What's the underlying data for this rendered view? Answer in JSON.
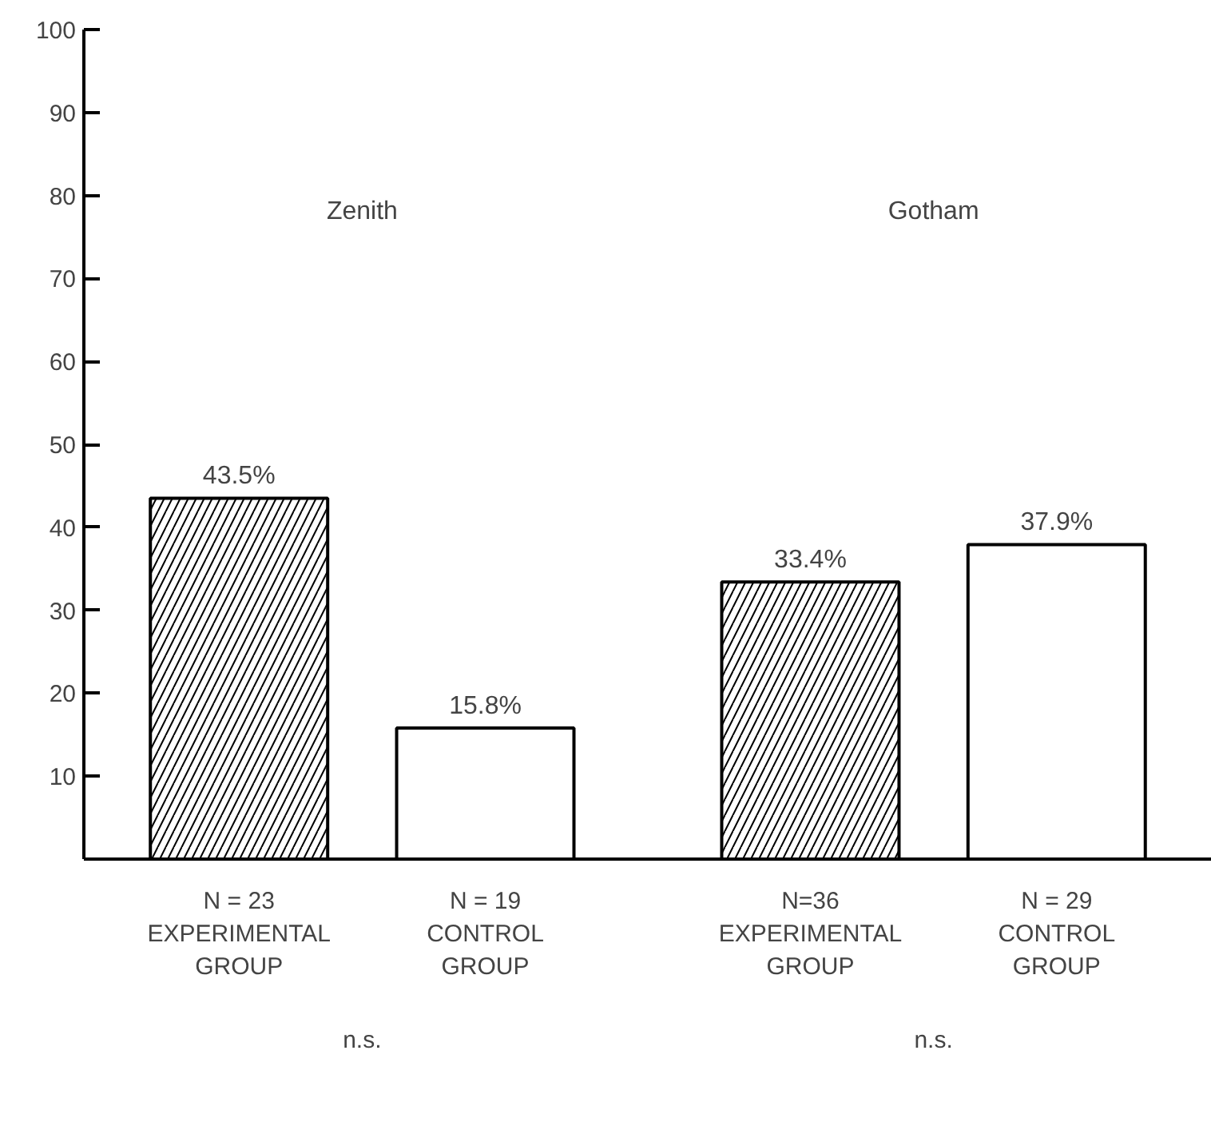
{
  "chart_data": {
    "type": "bar",
    "categories": [
      "N = 23\nEXPERIMENTAL\nGROUP",
      "N = 19\nCONTROL\nGROUP",
      "N=36\nEXPERIMENTAL\nGROUP",
      "N = 29\nCONTROL\nGROUP"
    ],
    "series": [
      {
        "color": "#ffffff",
        "values": [
          43.5,
          null,
          33.4,
          null
        ],
        "value_labels": [
          "43.5%",
          null,
          "33.4%",
          null
        ]
      },
      {
        "color": "#ffffff",
        "values": [
          null,
          15.8,
          null,
          37.9
        ],
        "value_labels": [
          null,
          "15.8%",
          null,
          "37.9%"
        ]
      }
    ],
    "ylim": [
      0,
      100
    ],
    "yticks": [
      10,
      20,
      30,
      40,
      50,
      60,
      70,
      80,
      90,
      100
    ],
    "annotations": [
      "Zenith",
      "Gotham",
      "n.s.",
      "n.s."
    ],
    "grid": false
  }
}
